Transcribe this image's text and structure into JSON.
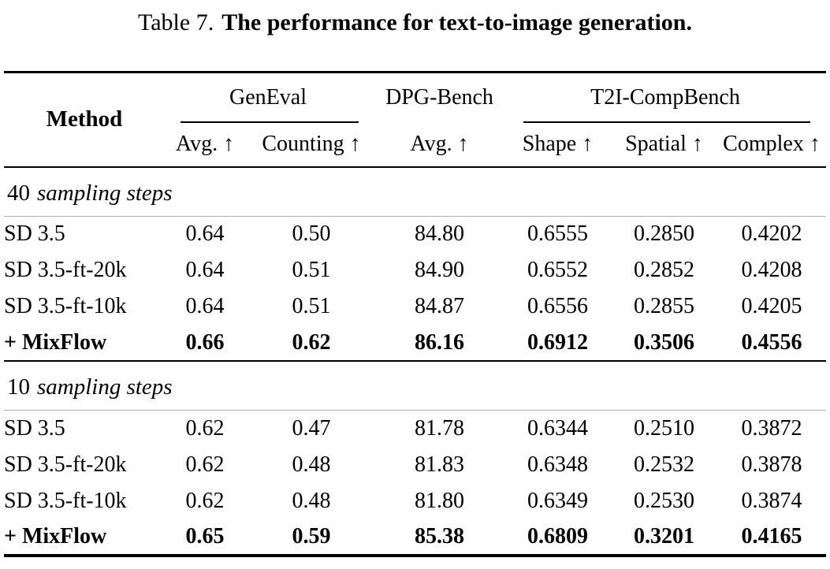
{
  "caption": {
    "prefix": "Table 7.",
    "main": "The performance for text-to-image generation."
  },
  "table": {
    "method_header": "Method",
    "groups": [
      {
        "label": "GenEval",
        "underline": true,
        "cols": [
          "Avg. ↑",
          "Counting ↑"
        ]
      },
      {
        "label": "DPG-Bench",
        "underline": false,
        "cols": [
          "Avg. ↑"
        ]
      },
      {
        "label": "T2I-CompBench",
        "underline": true,
        "cols": [
          "Shape ↑",
          "Spatial ↑",
          "Complex ↑"
        ]
      }
    ],
    "sections": [
      {
        "label_number": "40",
        "label_italic": "sampling steps",
        "rows": [
          {
            "method": "SD 3.5",
            "bold": false,
            "values": [
              "0.64",
              "0.50",
              "84.80",
              "0.6555",
              "0.2850",
              "0.4202"
            ]
          },
          {
            "method": "SD 3.5-ft-20k",
            "bold": false,
            "values": [
              "0.64",
              "0.51",
              "84.90",
              "0.6552",
              "0.2852",
              "0.4208"
            ]
          },
          {
            "method": "SD 3.5-ft-10k",
            "bold": false,
            "values": [
              "0.64",
              "0.51",
              "84.87",
              "0.6556",
              "0.2855",
              "0.4205"
            ]
          },
          {
            "method": "+ MixFlow",
            "bold": true,
            "values": [
              "0.66",
              "0.62",
              "86.16",
              "0.6912",
              "0.3506",
              "0.4556"
            ]
          }
        ]
      },
      {
        "label_number": "10",
        "label_italic": "sampling steps",
        "rows": [
          {
            "method": "SD 3.5",
            "bold": false,
            "values": [
              "0.62",
              "0.47",
              "81.78",
              "0.6344",
              "0.2510",
              "0.3872"
            ]
          },
          {
            "method": "SD 3.5-ft-20k",
            "bold": false,
            "values": [
              "0.62",
              "0.48",
              "81.83",
              "0.6348",
              "0.2532",
              "0.3878"
            ]
          },
          {
            "method": "SD 3.5-ft-10k",
            "bold": false,
            "values": [
              "0.62",
              "0.48",
              "81.80",
              "0.6349",
              "0.2530",
              "0.3874"
            ]
          },
          {
            "method": "+ MixFlow",
            "bold": true,
            "values": [
              "0.65",
              "0.59",
              "85.38",
              "0.6809",
              "0.3201",
              "0.4165"
            ]
          }
        ]
      }
    ]
  },
  "colors": {
    "text": "#000000",
    "rule_heavy": "#000000",
    "rule_light": "#b0b0b0",
    "background": "#ffffff"
  }
}
